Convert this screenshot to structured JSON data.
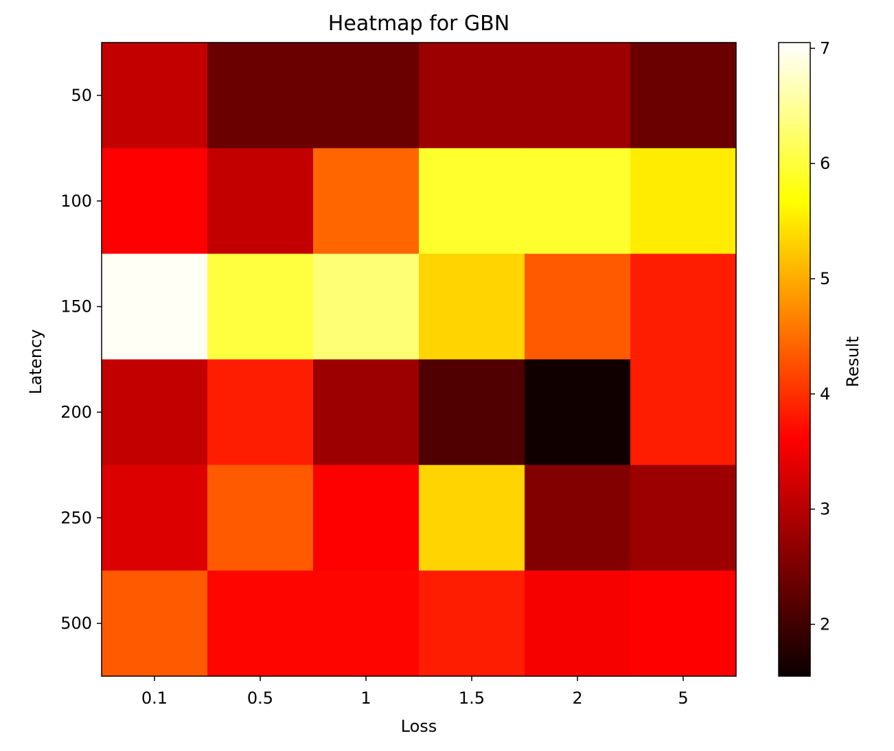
{
  "chart_data": {
    "type": "heatmap",
    "title": "Heatmap for GBN",
    "xlabel": "Loss",
    "ylabel": "Latency",
    "x_categories": [
      "0.1",
      "0.5",
      "1",
      "1.5",
      "2",
      "5"
    ],
    "y_categories": [
      "50",
      "100",
      "150",
      "200",
      "250",
      "500"
    ],
    "values": [
      [
        3.0,
        2.3,
        2.3,
        2.7,
        2.7,
        2.3
      ],
      [
        3.5,
        3.0,
        4.4,
        5.9,
        5.9,
        5.5
      ],
      [
        7.0,
        6.0,
        6.3,
        5.3,
        4.3,
        3.8
      ],
      [
        3.0,
        3.8,
        2.7,
        2.1,
        1.6,
        3.8
      ],
      [
        3.2,
        4.3,
        3.5,
        5.3,
        2.5,
        2.7
      ],
      [
        4.3,
        3.6,
        3.6,
        3.8,
        3.4,
        3.5
      ]
    ],
    "colormap": "hot",
    "vmin": 1.55,
    "vmax": 7.05,
    "colorbar": {
      "label": "Result",
      "ticks": [
        "2",
        "3",
        "4",
        "5",
        "6",
        "7"
      ]
    },
    "grid": false
  }
}
